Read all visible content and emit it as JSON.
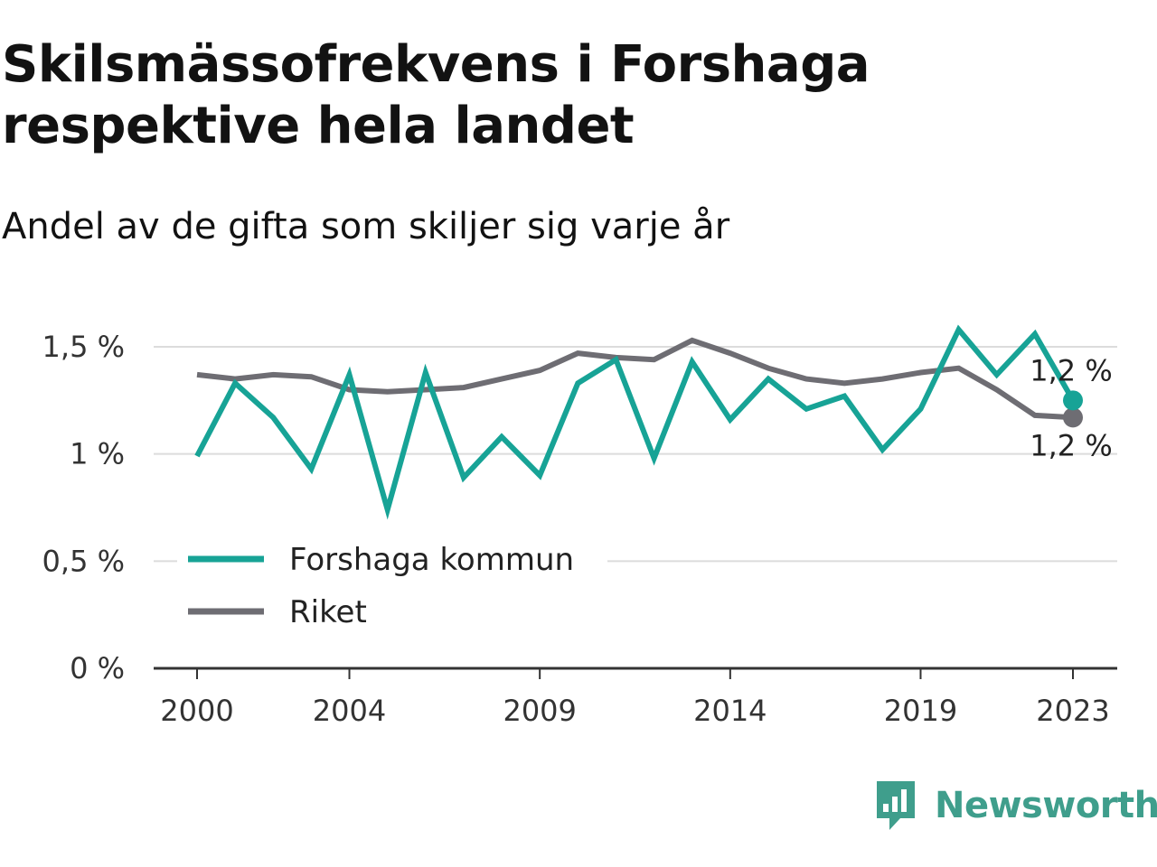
{
  "header": {
    "title": "Skilsmässofrekvens i Forshaga respektive hela landet",
    "subtitle": "Andel av de gifta som skiljer sig varje år"
  },
  "brand": {
    "name": "Newsworthy",
    "icon": "newsworthy-logo-icon",
    "color": "#3f9e8c"
  },
  "chart_data": {
    "type": "line",
    "title": "Skilsmässofrekvens i Forshaga respektive hela landet",
    "subtitle": "Andel av de gifta som skiljer sig varje år",
    "x": [
      2000,
      2001,
      2002,
      2003,
      2004,
      2005,
      2006,
      2007,
      2008,
      2009,
      2010,
      2011,
      2012,
      2013,
      2014,
      2015,
      2016,
      2017,
      2018,
      2019,
      2020,
      2021,
      2022,
      2023
    ],
    "x_ticks": [
      2000,
      2004,
      2009,
      2014,
      2019,
      2023
    ],
    "y_ticks": [
      {
        "value": 0,
        "label": "0 %"
      },
      {
        "value": 0.5,
        "label": "0,5 %"
      },
      {
        "value": 1,
        "label": "1 %"
      },
      {
        "value": 1.5,
        "label": "1,5 %"
      }
    ],
    "ylim": [
      0,
      1.5
    ],
    "grid": true,
    "legend_position": "lower-left",
    "series": [
      {
        "name": "Forshaga kommun",
        "color": "#17a396",
        "values": [
          0.99,
          1.33,
          1.17,
          0.93,
          1.37,
          0.74,
          1.38,
          0.89,
          1.08,
          0.9,
          1.33,
          1.44,
          0.98,
          1.43,
          1.16,
          1.35,
          1.21,
          1.27,
          1.02,
          1.21,
          1.58,
          1.37,
          1.56,
          1.25
        ],
        "end_label": "1,2 %"
      },
      {
        "name": "Riket",
        "color": "#6e6d73",
        "values": [
          1.37,
          1.35,
          1.37,
          1.36,
          1.3,
          1.29,
          1.3,
          1.31,
          1.35,
          1.39,
          1.47,
          1.45,
          1.44,
          1.53,
          1.47,
          1.4,
          1.35,
          1.33,
          1.35,
          1.38,
          1.4,
          1.3,
          1.18,
          1.17
        ],
        "end_label": "1,2 %"
      }
    ]
  }
}
